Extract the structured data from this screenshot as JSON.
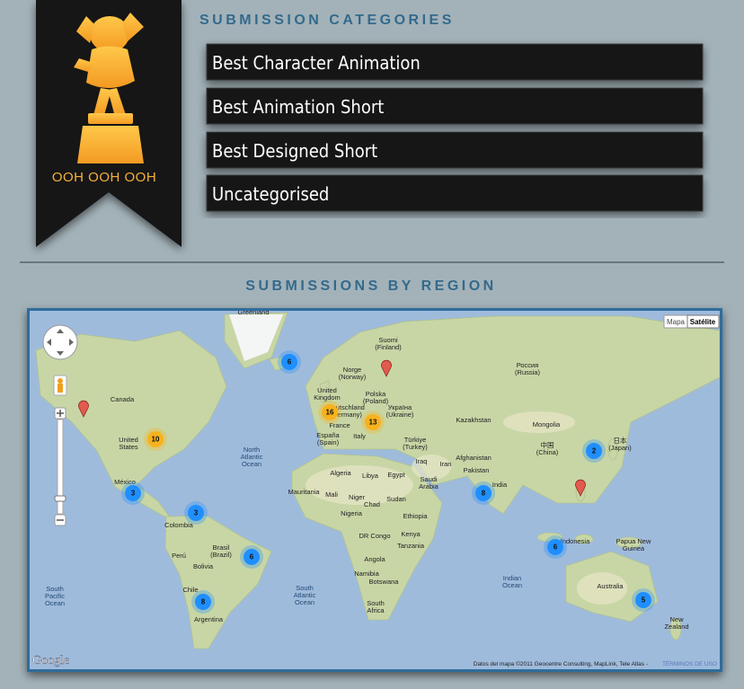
{
  "sidebar": {
    "badge": "OOH OOH OOH"
  },
  "categories": {
    "heading": "SUBMISSION CATEGORIES",
    "items": [
      "Best Character Animation",
      "Best Animation Short",
      "Best Designed Short",
      "Uncategorised"
    ]
  },
  "region": {
    "heading": "SUBMISSIONS BY REGION",
    "map": {
      "labels": [
        [
          "Greenland"
        ],
        [
          "Suomi",
          "(Finland)"
        ],
        [
          "Norge",
          "(Norway)"
        ],
        [
          "Россия",
          "(Russia)"
        ],
        [
          "Canada"
        ],
        [
          "United",
          "Kingdom"
        ],
        [
          "Polska",
          "(Poland)"
        ],
        [
          "Deutschland",
          "(Germany)"
        ],
        [
          "Україна",
          "(Ukraine)"
        ],
        [
          "Kazakhstan"
        ],
        [
          "Mongolia"
        ],
        [
          "France"
        ],
        [
          "Italy"
        ],
        [
          "España",
          "(Spain)"
        ],
        [
          "Türkiye",
          "(Turkey)"
        ],
        [
          "United",
          "States"
        ],
        [
          "中国",
          "(China)"
        ],
        [
          "日本",
          "(Japan)"
        ],
        [
          "North",
          "Atlantic",
          "Ocean"
        ],
        [
          "Afghanistan"
        ],
        [
          "Iran"
        ],
        [
          "Iraq"
        ],
        [
          "Pakistan"
        ],
        [
          "Algeria"
        ],
        [
          "Libya"
        ],
        [
          "Egypt"
        ],
        [
          "Saudi",
          "Arabia"
        ],
        [
          "India"
        ],
        [
          "México"
        ],
        [
          "Mauritania"
        ],
        [
          "Mali"
        ],
        [
          "Niger"
        ],
        [
          "Sudan"
        ],
        [
          "Chad"
        ],
        [
          "Nigeria"
        ],
        [
          "Ethiopia"
        ],
        [
          "Colombia"
        ],
        [
          "Kenya"
        ],
        [
          "DR Congo"
        ],
        [
          "Tanzania"
        ],
        [
          "Indonesia"
        ],
        [
          "Papua New",
          "Guinea"
        ],
        [
          "Perú"
        ],
        [
          "Brasil",
          "(Brazil)"
        ],
        [
          "Bolivia"
        ],
        [
          "Angola"
        ],
        [
          "Namibia"
        ],
        [
          "Botswana"
        ],
        [
          "Indian",
          "Ocean"
        ],
        [
          "Australia"
        ],
        [
          "South",
          "Pacific",
          "Ocean"
        ],
        [
          "South",
          "Atlantic",
          "Ocean"
        ],
        [
          "Chile"
        ],
        [
          "South",
          "Africa"
        ],
        [
          "Argentina"
        ],
        [
          "New",
          "Zealand"
        ]
      ],
      "clusters": [
        6,
        10,
        16,
        13,
        3,
        3,
        6,
        8,
        8,
        6,
        2,
        5
      ],
      "controls": {
        "map": "Mapa",
        "satellite": "Satélite"
      },
      "logo": "Google",
      "attribution": "Datos del mapa ©2011 Geocentre Consulting, MapLink, Tele Atlas -",
      "terms": "TÉRMINOS DE USO"
    }
  }
}
